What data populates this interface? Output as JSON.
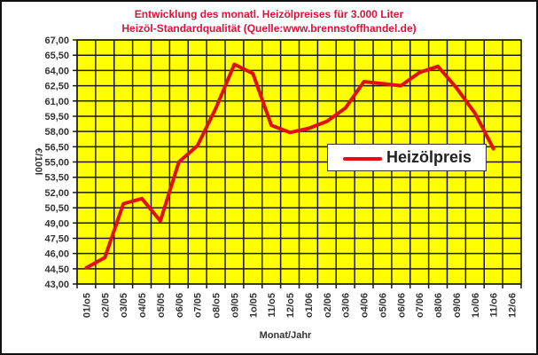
{
  "chart_data": {
    "type": "line",
    "title": "Entwicklung des monatl. Heizölpreises für 3.000 Liter",
    "subtitle": "Heizöl-Standardqualität (Quelle:www.brennstoffhandel.de)",
    "xlabel": "Monat/Jahr",
    "ylabel": "€/100l",
    "ylim": [
      43.0,
      67.0
    ],
    "ytick_step": 1.5,
    "yticks": [
      "43,00",
      "44,50",
      "46,00",
      "47,50",
      "49,00",
      "50,50",
      "52,00",
      "53,50",
      "55,00",
      "56,50",
      "58,00",
      "59,50",
      "61,00",
      "62,50",
      "64,00",
      "65,50",
      "67,00"
    ],
    "categories": [
      "01/o5",
      "o2/05",
      "o3/05",
      "o4/05",
      "o5/05",
      "o6/06",
      "o7/05",
      "o8/o5",
      "o9/05",
      "1o/05",
      "11/o5",
      "12/o5",
      "o1/06",
      "o2/06",
      "o3/06",
      "o4/06",
      "o5/06",
      "o6/06",
      "o7/06",
      "o8/06",
      "o9/06",
      "1o/06",
      "11/o6",
      "12/o6"
    ],
    "series": [
      {
        "name": "Heizölpreis",
        "color": "#e01010",
        "values": [
          44.6,
          45.6,
          50.9,
          51.4,
          49.2,
          55.0,
          56.6,
          60.3,
          64.6,
          63.7,
          58.6,
          57.9,
          58.3,
          59.0,
          60.3,
          62.9,
          62.7,
          62.5,
          63.8,
          64.4,
          62.3,
          59.8,
          56.3,
          null
        ]
      }
    ],
    "grid": true,
    "plot_background": "#ffff00",
    "legend_position": "inside-right",
    "title_color": "#d8143a"
  },
  "legend": {
    "label": "Heizölpreis"
  }
}
